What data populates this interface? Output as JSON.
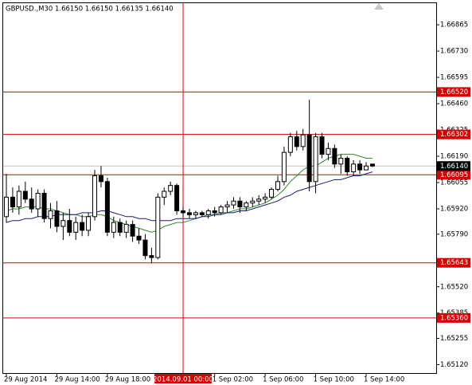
{
  "chart_data": {
    "type": "candlestick",
    "title": "GBPUSD.,M30  1.66150 1.66150 1.66135 1.66140",
    "categories": [
      "29 Aug 2014",
      null,
      null,
      null,
      null,
      null,
      null,
      null,
      "29 Aug 14:00",
      null,
      null,
      null,
      null,
      null,
      null,
      null,
      "29 Aug 18:00",
      null,
      null,
      null,
      null,
      null,
      null,
      null,
      null,
      null,
      null,
      null,
      "2014.09.01 00:00",
      null,
      null,
      null,
      null,
      "1 Sep 02:00",
      null,
      null,
      null,
      null,
      null,
      null,
      null,
      "1 Sep 06:00",
      null,
      null,
      null,
      null,
      null,
      null,
      null,
      "1 Sep 10:00",
      null,
      null,
      null,
      null,
      null,
      null,
      null,
      "1 Sep 14:00",
      null
    ],
    "ohlc": [
      [
        1.6588,
        1.661,
        1.6585,
        1.6598
      ],
      [
        1.6598,
        1.6603,
        1.659,
        1.6593
      ],
      [
        1.6593,
        1.6604,
        1.6589,
        1.6601
      ],
      [
        1.6601,
        1.6606,
        1.6595,
        1.6597
      ],
      [
        1.6597,
        1.6603,
        1.659,
        1.6592
      ],
      [
        1.6592,
        1.6602,
        1.6588,
        1.66
      ],
      [
        1.66,
        1.6602,
        1.6585,
        1.6587
      ],
      [
        1.6587,
        1.6595,
        1.6582,
        1.6591
      ],
      [
        1.6591,
        1.6596,
        1.658,
        1.6583
      ],
      [
        1.6583,
        1.659,
        1.6576,
        1.6586
      ],
      [
        1.6586,
        1.6592,
        1.6578,
        1.658
      ],
      [
        1.658,
        1.6588,
        1.6576,
        1.6585
      ],
      [
        1.6585,
        1.6589,
        1.6578,
        1.6581
      ],
      [
        1.6581,
        1.659,
        1.6578,
        1.6588
      ],
      [
        1.6588,
        1.6612,
        1.6586,
        1.6609
      ],
      [
        1.6609,
        1.6614,
        1.6603,
        1.6606
      ],
      [
        1.6606,
        1.6608,
        1.6578,
        1.658
      ],
      [
        1.658,
        1.6588,
        1.6577,
        1.6585
      ],
      [
        1.6585,
        1.6587,
        1.6578,
        1.658
      ],
      [
        1.658,
        1.6586,
        1.6577,
        1.6584
      ],
      [
        1.6584,
        1.6586,
        1.6575,
        1.6578
      ],
      [
        1.6578,
        1.6582,
        1.6574,
        1.6576
      ],
      [
        1.6576,
        1.6579,
        1.6566,
        1.6568
      ],
      [
        1.6568,
        1.6572,
        1.6564,
        1.6567
      ],
      [
        1.6567,
        1.66,
        1.6566,
        1.6598
      ],
      [
        1.6598,
        1.6603,
        1.6594,
        1.6601
      ],
      [
        1.6601,
        1.6606,
        1.6599,
        1.6604
      ],
      [
        1.6604,
        1.6605,
        1.6589,
        1.6591
      ],
      [
        1.6591,
        1.6593,
        1.6588,
        1.659
      ],
      [
        1.659,
        1.6592,
        1.6587,
        1.6589
      ],
      [
        1.6589,
        1.6591,
        1.6587,
        1.659
      ],
      [
        1.659,
        1.6591,
        1.6588,
        1.6589
      ],
      [
        1.6589,
        1.6592,
        1.6587,
        1.6591
      ],
      [
        1.6591,
        1.6593,
        1.6588,
        1.659
      ],
      [
        1.659,
        1.6594,
        1.6589,
        1.6593
      ],
      [
        1.6593,
        1.6596,
        1.659,
        1.6594
      ],
      [
        1.6594,
        1.6598,
        1.6592,
        1.6596
      ],
      [
        1.6596,
        1.6598,
        1.659,
        1.6593
      ],
      [
        1.6593,
        1.6596,
        1.6591,
        1.6595
      ],
      [
        1.6595,
        1.6598,
        1.6593,
        1.6596
      ],
      [
        1.6596,
        1.6599,
        1.6594,
        1.6597
      ],
      [
        1.6597,
        1.66,
        1.6595,
        1.6598
      ],
      [
        1.6598,
        1.6603,
        1.6597,
        1.6602
      ],
      [
        1.6602,
        1.6609,
        1.6601,
        1.6606
      ],
      [
        1.6606,
        1.6624,
        1.6604,
        1.6621
      ],
      [
        1.6621,
        1.6631,
        1.6619,
        1.6629
      ],
      [
        1.6629,
        1.6632,
        1.6622,
        1.6624
      ],
      [
        1.6624,
        1.6633,
        1.6622,
        1.663
      ],
      [
        1.663,
        1.6648,
        1.6601,
        1.6606
      ],
      [
        1.6606,
        1.6631,
        1.66,
        1.6629
      ],
      [
        1.6629,
        1.6631,
        1.6618,
        1.662
      ],
      [
        1.662,
        1.6626,
        1.6617,
        1.6623
      ],
      [
        1.6623,
        1.6625,
        1.6613,
        1.6615
      ],
      [
        1.6615,
        1.662,
        1.661,
        1.6618
      ],
      [
        1.6618,
        1.6619,
        1.6609,
        1.6611
      ],
      [
        1.6611,
        1.6617,
        1.6609,
        1.6615
      ],
      [
        1.6615,
        1.6617,
        1.661,
        1.6612
      ],
      [
        1.6612,
        1.6616,
        1.6612,
        1.6614
      ],
      [
        1.6615,
        1.6615,
        1.66135,
        1.6614
      ]
    ],
    "lines": [
      {
        "color": "#2e8b2e",
        "values": [
          1.6591,
          1.6592,
          1.6592,
          1.6593,
          1.6593,
          1.6593,
          1.6592,
          1.6592,
          1.6591,
          1.659,
          1.6589,
          1.6589,
          1.6588,
          1.6588,
          1.6589,
          1.6589,
          1.6588,
          1.6586,
          1.6585,
          1.6584,
          1.6583,
          1.6582,
          1.6581,
          1.658,
          1.6581,
          1.6583,
          1.6584,
          1.6585,
          1.6585,
          1.6586,
          1.6587,
          1.6588,
          1.6589,
          1.6589,
          1.659,
          1.659,
          1.6591,
          1.6592,
          1.6592,
          1.6593,
          1.6594,
          1.6595,
          1.6597,
          1.6599,
          1.6602,
          1.6606,
          1.6609,
          1.6612,
          1.6614,
          1.6614,
          1.6616,
          1.6618,
          1.6619,
          1.662,
          1.662,
          1.662,
          1.6619,
          1.6618,
          1.6618
        ]
      },
      {
        "color": "#1a1a80",
        "values": [
          1.6585,
          1.6586,
          1.6586,
          1.6587,
          1.6587,
          1.6588,
          1.6588,
          1.6588,
          1.6589,
          1.6589,
          1.6589,
          1.6589,
          1.659,
          1.659,
          1.659,
          1.6591,
          1.6591,
          1.659,
          1.6589,
          1.6588,
          1.6588,
          1.6587,
          1.6587,
          1.6586,
          1.6586,
          1.6586,
          1.6586,
          1.6587,
          1.6587,
          1.6587,
          1.6587,
          1.6588,
          1.6588,
          1.6589,
          1.6589,
          1.659,
          1.659,
          1.6591,
          1.6591,
          1.6592,
          1.6593,
          1.6594,
          1.6595,
          1.6596,
          1.6598,
          1.6599,
          1.6601,
          1.6602,
          1.6603,
          1.6604,
          1.6605,
          1.6606,
          1.6607,
          1.6607,
          1.6608,
          1.6609,
          1.6609,
          1.661,
          1.6611
        ]
      }
    ],
    "ylim": [
      1.65077,
      1.6698
    ],
    "yticks": [
      {
        "value": 1.66865,
        "label": "1.66865"
      },
      {
        "value": 1.6673,
        "label": "1.66730"
      },
      {
        "value": 1.66595,
        "label": "1.66595"
      },
      {
        "value": 1.6646,
        "label": "1.66460"
      },
      {
        "value": 1.66325,
        "label": "1.66325"
      },
      {
        "value": 1.6619,
        "label": "1.66190"
      },
      {
        "value": 1.66055,
        "label": "1.66055"
      },
      {
        "value": 1.6592,
        "label": "1.65920"
      },
      {
        "value": 1.6579,
        "label": "1.65790"
      },
      {
        "value": 1.6552,
        "label": "1.65520"
      },
      {
        "value": 1.65385,
        "label": "1.65385"
      },
      {
        "value": 1.65255,
        "label": "1.65255"
      },
      {
        "value": 1.6512,
        "label": "1.65120"
      }
    ],
    "levels": [
      {
        "value": 1.6652,
        "label": "1.66520"
      },
      {
        "value": 1.66302,
        "label": "1.66302"
      },
      {
        "value": 1.66095,
        "label": "1.66095"
      },
      {
        "value": 1.65643,
        "label": "1.65643"
      },
      {
        "value": 1.6536,
        "label": "1.65360"
      }
    ],
    "level_color": "#d40000",
    "current_price": {
      "value": 1.6614,
      "label": "1.66140"
    },
    "crosshair": "2014.09.01 00:00"
  }
}
